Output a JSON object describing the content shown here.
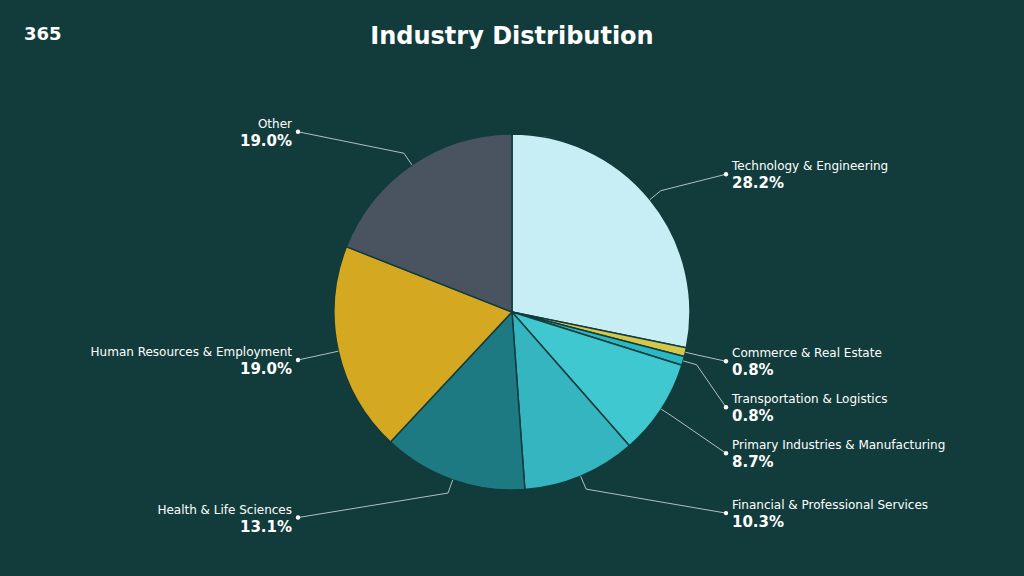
{
  "chart_data": {
    "type": "pie",
    "title": "Industry Distribution",
    "annotations": [
      "365"
    ],
    "categories": [
      "Technology & Engineering",
      "Commerce & Real Estate",
      "Transportation & Logistics",
      "Primary Industries & Manufacturing",
      "Financial & Professional Services",
      "Health & Life Sciences",
      "Human Resources & Employment",
      "Other"
    ],
    "values": [
      28.2,
      0.8,
      0.8,
      8.7,
      10.3,
      13.1,
      19.0,
      19.0
    ],
    "value_labels": [
      "28.2%",
      "0.8%",
      "0.8%",
      "8.7%",
      "10.3%",
      "13.1%",
      "19.0%",
      "19.0%"
    ],
    "colors": [
      "#c8eef5",
      "#d4c84a",
      "#2ab8c5",
      "#40c8d0",
      "#35b5c0",
      "#1e7a82",
      "#d4a820",
      "#4a5460"
    ],
    "data_labels": true
  }
}
